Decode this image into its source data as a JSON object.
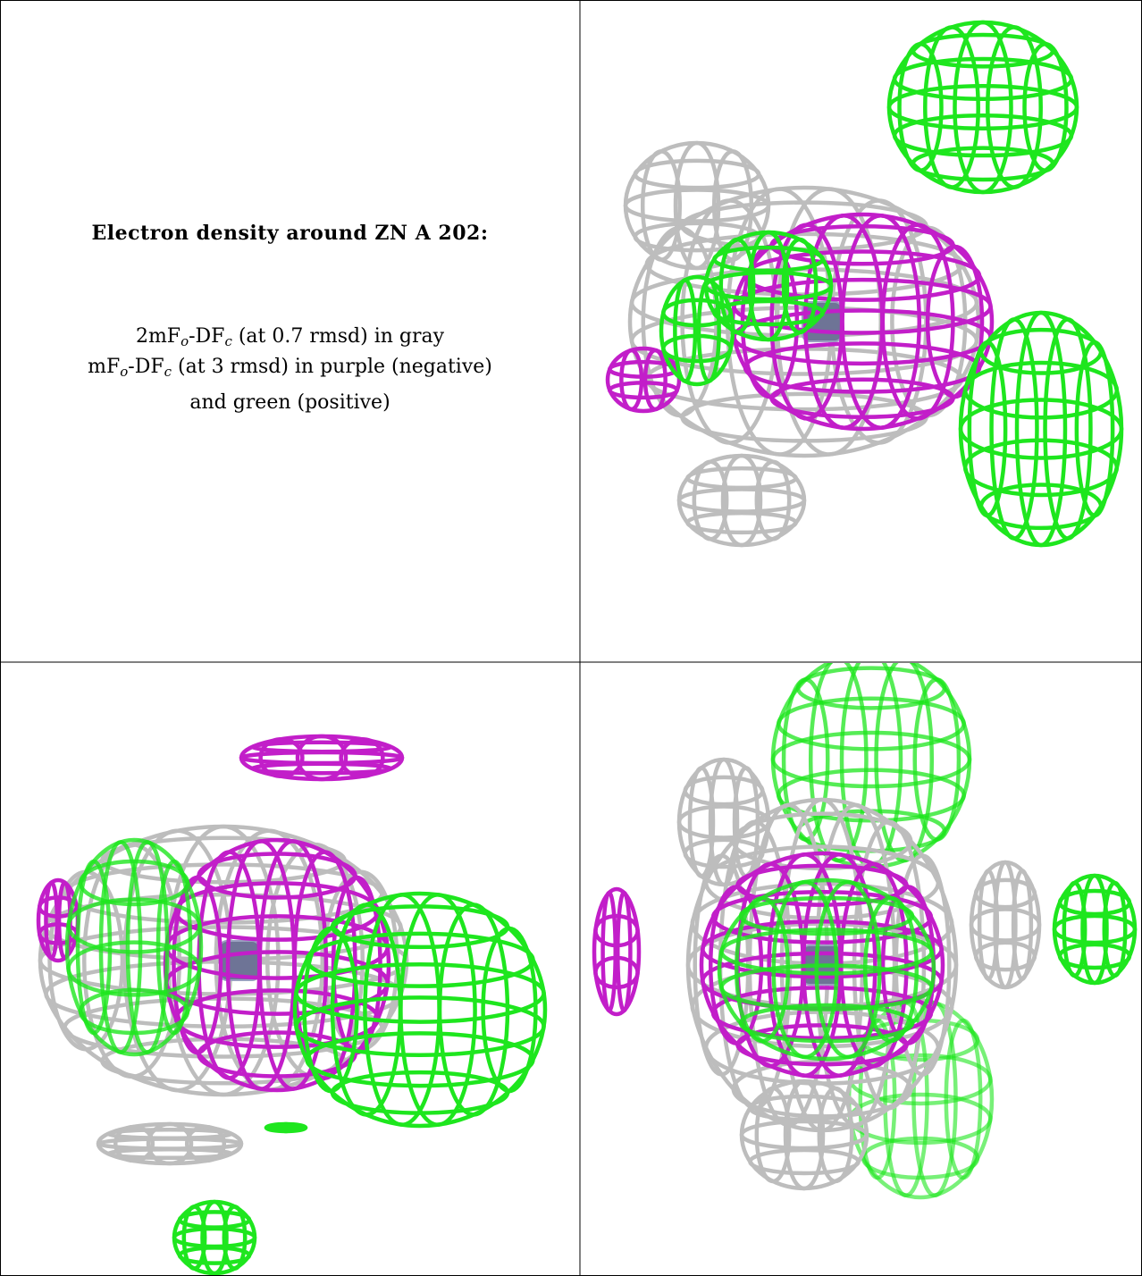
{
  "caption": {
    "title": "Electron density around ZN A 202:",
    "lines": [
      [
        "2mF",
        "o",
        "-DF",
        "c",
        " (at 0.7 rmsd) in gray"
      ],
      [
        "mF",
        "o",
        "-DF",
        "c",
        " (at 3 rmsd) in purple (negative)"
      ],
      [
        "and green (positive)"
      ]
    ]
  }
}
